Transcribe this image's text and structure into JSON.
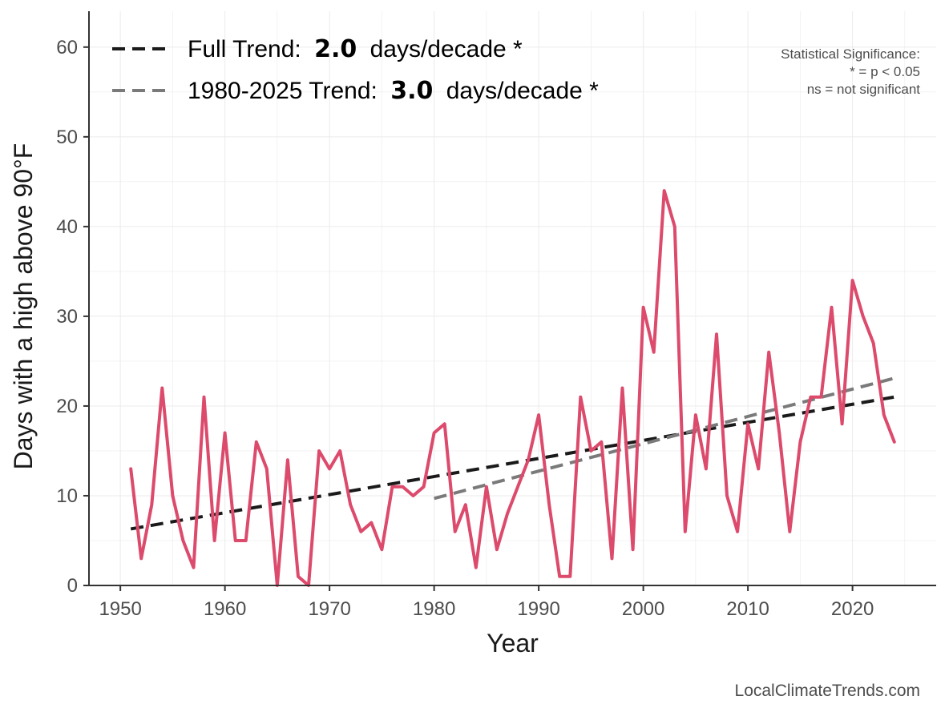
{
  "chart_data": {
    "type": "line",
    "xlabel": "Year",
    "ylabel": "Days with a high above 90°F",
    "xlim": [
      1947,
      2028
    ],
    "ylim": [
      0,
      64
    ],
    "x_ticks": [
      1950,
      1960,
      1970,
      1980,
      1990,
      2000,
      2010,
      2020
    ],
    "y_ticks": [
      0,
      10,
      20,
      30,
      40,
      50,
      60
    ],
    "grid": true,
    "legend_position": "top-left",
    "series": [
      {
        "color": "#dc4a6c",
        "x": [
          1951,
          1952,
          1953,
          1954,
          1955,
          1956,
          1957,
          1958,
          1959,
          1960,
          1961,
          1962,
          1963,
          1964,
          1965,
          1966,
          1967,
          1968,
          1969,
          1970,
          1971,
          1972,
          1973,
          1974,
          1975,
          1976,
          1977,
          1978,
          1979,
          1980,
          1981,
          1982,
          1983,
          1984,
          1985,
          1986,
          1987,
          1988,
          1989,
          1990,
          1991,
          1992,
          1993,
          1994,
          1995,
          1996,
          1997,
          1998,
          1999,
          2000,
          2001,
          2002,
          2003,
          2004,
          2005,
          2006,
          2007,
          2008,
          2009,
          2010,
          2011,
          2012,
          2013,
          2014,
          2015,
          2016,
          2017,
          2018,
          2019,
          2020,
          2021,
          2022,
          2023,
          2024
        ],
        "y": [
          13,
          3,
          9,
          22,
          10,
          5,
          2,
          21,
          5,
          17,
          5,
          5,
          16,
          13,
          0,
          14,
          1,
          0,
          15,
          13,
          15,
          9,
          6,
          7,
          4,
          11,
          11,
          10,
          11,
          17,
          18,
          6,
          9,
          2,
          11,
          4,
          8,
          11,
          14,
          19,
          9,
          1,
          1,
          21,
          15,
          16,
          3,
          22,
          4,
          31,
          26,
          44,
          40,
          6,
          19,
          13,
          28,
          10,
          6,
          18,
          13,
          26,
          17,
          6,
          16,
          21,
          21,
          31,
          18,
          34,
          30,
          27,
          19,
          16
        ]
      }
    ],
    "trend_lines": [
      {
        "label": "Full Trend:",
        "rate": "2.0",
        "unit": "days/decade *",
        "color": "#1a1a1a",
        "x": [
          1951,
          2024
        ],
        "y": [
          6.3,
          21.0
        ]
      },
      {
        "label": "1980-2025 Trend:",
        "rate": "3.0",
        "unit": "days/decade *",
        "color": "#7a7a7a",
        "x": [
          1980,
          2024
        ],
        "y": [
          9.7,
          23.1
        ]
      }
    ],
    "annotations": {
      "significance_lines": [
        "Statistical Significance:",
        "* = p < 0.05",
        "ns = not significant"
      ],
      "credit": "LocalClimateTrends.com"
    }
  }
}
